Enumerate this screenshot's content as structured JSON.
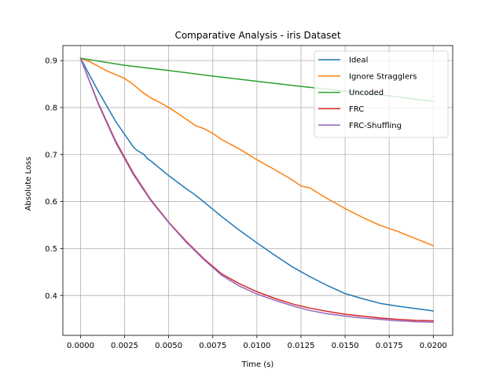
{
  "chart_data": {
    "type": "line",
    "title": "Comparative Analysis - iris Dataset",
    "xlabel": "Time (s)",
    "ylabel": "Absolute Loss",
    "xlim": [
      -0.001,
      0.0211
    ],
    "ylim": [
      0.315,
      0.932
    ],
    "xticks": [
      0.0,
      0.0025,
      0.005,
      0.0075,
      0.01,
      0.0125,
      0.015,
      0.0175,
      0.02
    ],
    "xtick_labels": [
      "0.0000",
      "0.0025",
      "0.0050",
      "0.0075",
      "0.0100",
      "0.0125",
      "0.0150",
      "0.0175",
      "0.0200"
    ],
    "yticks": [
      0.4,
      0.5,
      0.6,
      0.7,
      0.8,
      0.9
    ],
    "ytick_labels": [
      "0.4",
      "0.5",
      "0.6",
      "0.7",
      "0.8",
      "0.9"
    ],
    "grid": true,
    "legend_position": "top-right",
    "series": [
      {
        "name": "Ideal",
        "color": "#1f77b4",
        "x": [
          0.0,
          0.001,
          0.002,
          0.003,
          0.0032,
          0.0036,
          0.0038,
          0.004,
          0.005,
          0.006,
          0.0065,
          0.007,
          0.008,
          0.009,
          0.01,
          0.011,
          0.012,
          0.013,
          0.014,
          0.015,
          0.016,
          0.017,
          0.018,
          0.019,
          0.02
        ],
        "y": [
          0.905,
          0.835,
          0.77,
          0.716,
          0.709,
          0.7,
          0.691,
          0.686,
          0.655,
          0.627,
          0.614,
          0.599,
          0.568,
          0.539,
          0.512,
          0.486,
          0.461,
          0.44,
          0.421,
          0.404,
          0.393,
          0.383,
          0.377,
          0.372,
          0.367
        ]
      },
      {
        "name": "Ignore Stragglers",
        "color": "#ff7f0e",
        "x": [
          0.0,
          0.0005,
          0.001,
          0.0015,
          0.002,
          0.0025,
          0.003,
          0.0035,
          0.004,
          0.0045,
          0.005,
          0.0055,
          0.006,
          0.0065,
          0.007,
          0.0075,
          0.008,
          0.009,
          0.01,
          0.011,
          0.012,
          0.0125,
          0.013,
          0.014,
          0.015,
          0.016,
          0.017,
          0.018,
          0.019,
          0.02
        ],
        "y": [
          0.905,
          0.898,
          0.888,
          0.878,
          0.87,
          0.862,
          0.849,
          0.833,
          0.82,
          0.811,
          0.8,
          0.788,
          0.775,
          0.762,
          0.755,
          0.745,
          0.732,
          0.712,
          0.689,
          0.668,
          0.646,
          0.633,
          0.629,
          0.606,
          0.585,
          0.566,
          0.549,
          0.536,
          0.521,
          0.506
        ]
      },
      {
        "name": "Uncoded",
        "color": "#2ca02c",
        "x": [
          0.0,
          0.0025,
          0.005,
          0.0075,
          0.01,
          0.0125,
          0.015,
          0.0175,
          0.02
        ],
        "y": [
          0.905,
          0.89,
          0.879,
          0.867,
          0.856,
          0.845,
          0.835,
          0.825,
          0.813
        ]
      },
      {
        "name": "FRC",
        "color": "#d62728",
        "x": [
          0.0,
          0.001,
          0.002,
          0.003,
          0.004,
          0.005,
          0.006,
          0.007,
          0.008,
          0.009,
          0.01,
          0.011,
          0.012,
          0.013,
          0.014,
          0.015,
          0.016,
          0.017,
          0.018,
          0.019,
          0.02
        ],
        "y": [
          0.905,
          0.81,
          0.728,
          0.66,
          0.603,
          0.556,
          0.515,
          0.478,
          0.446,
          0.425,
          0.408,
          0.394,
          0.382,
          0.373,
          0.366,
          0.36,
          0.356,
          0.352,
          0.349,
          0.347,
          0.346
        ]
      },
      {
        "name": "FRC-Shuffling",
        "color": "#9467bd",
        "x": [
          0.0,
          0.001,
          0.002,
          0.003,
          0.004,
          0.005,
          0.006,
          0.007,
          0.008,
          0.009,
          0.01,
          0.011,
          0.012,
          0.013,
          0.014,
          0.015,
          0.016,
          0.017,
          0.018,
          0.019,
          0.02
        ],
        "y": [
          0.905,
          0.808,
          0.725,
          0.657,
          0.601,
          0.555,
          0.513,
          0.476,
          0.443,
          0.42,
          0.403,
          0.39,
          0.378,
          0.368,
          0.361,
          0.356,
          0.352,
          0.349,
          0.346,
          0.344,
          0.343
        ]
      }
    ]
  }
}
